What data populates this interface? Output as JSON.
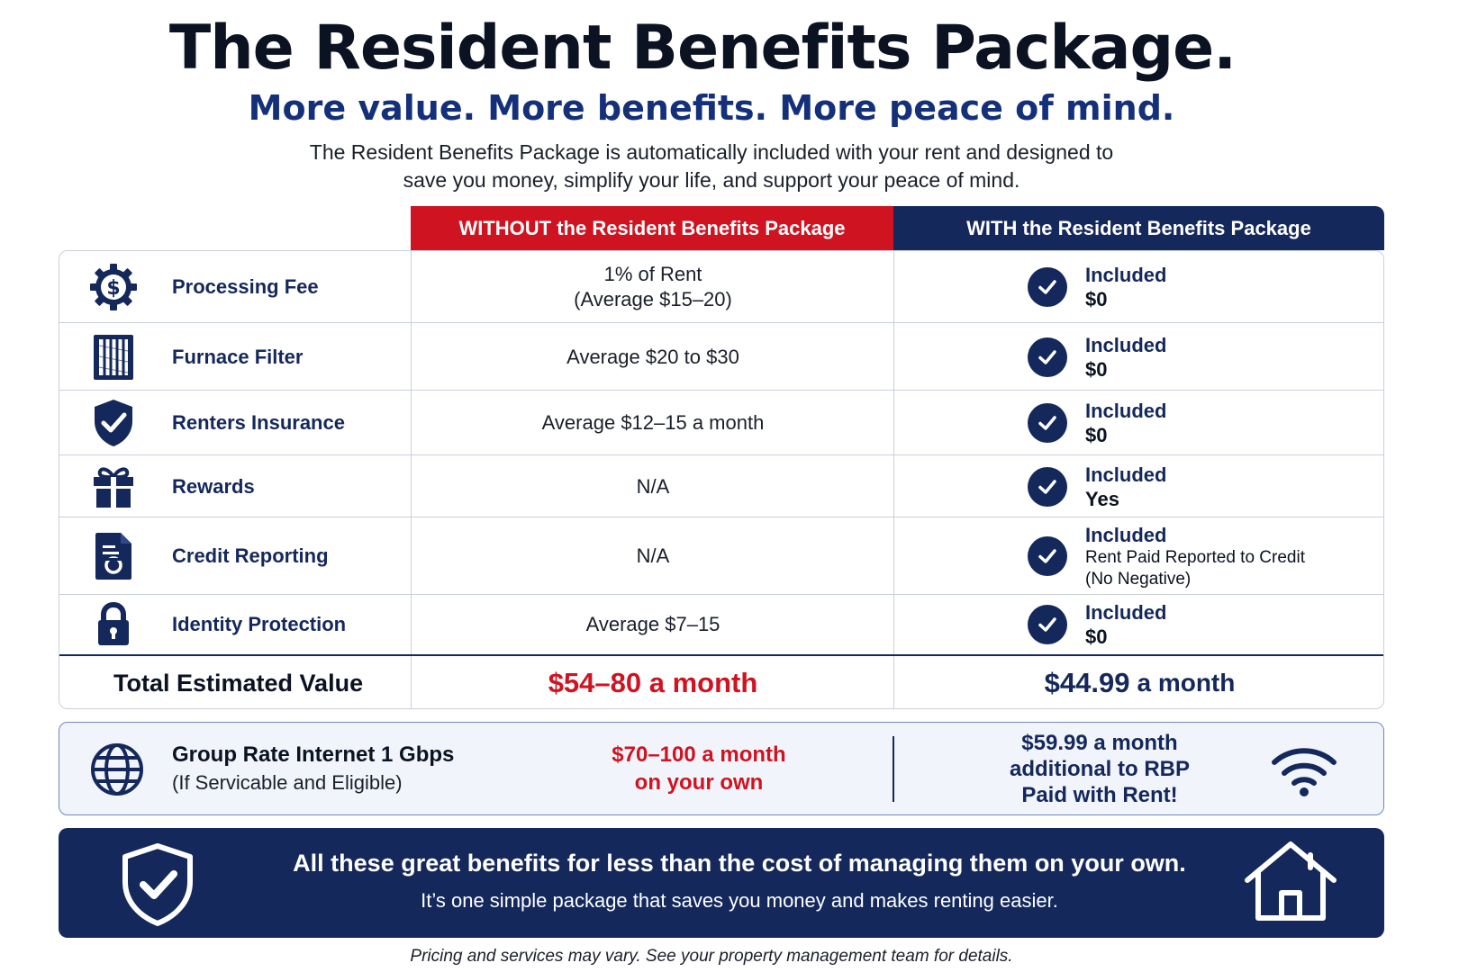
{
  "header": {
    "title": "The Resident Benefits Package.",
    "subtitle": "More value. More benefits. More peace of mind.",
    "intro_line1": "The Resident Benefits Package is automatically included with your rent and designed to",
    "intro_line2": "save you money, simplify your life, and support your peace of mind."
  },
  "columns": {
    "without": "WITHOUT the Resident Benefits Package",
    "with": "WITH the Resident Benefits Package"
  },
  "rows": [
    {
      "icon": "dollar-gear-icon",
      "label": "Processing Fee",
      "without_line1": "1% of Rent",
      "without_line2": "(Average $15–20)",
      "included": "Included",
      "with_value": "$0"
    },
    {
      "icon": "furnace-filter-icon",
      "label": "Furnace Filter",
      "without_line1": "Average $20 to $30",
      "without_line2": "",
      "included": "Included",
      "with_value": "$0"
    },
    {
      "icon": "shield-check-icon",
      "label": "Renters Insurance",
      "without_line1": "Average $12–15 a month",
      "without_line2": "",
      "included": "Included",
      "with_value": "$0"
    },
    {
      "icon": "gift-icon",
      "label": "Rewards",
      "without_line1": "N/A",
      "without_line2": "",
      "included": "Included",
      "with_value": "Yes"
    },
    {
      "icon": "credit-report-icon",
      "label": "Credit Reporting",
      "without_line1": "N/A",
      "without_line2": "",
      "included": "Included",
      "with_value_line1": "Rent Paid Reported to Credit",
      "with_value_line2": "(No Negative)"
    },
    {
      "icon": "lock-icon",
      "label": "Identity Protection",
      "without_line1": "Average $7–15",
      "without_line2": "",
      "included": "Included",
      "with_value": "$0"
    }
  ],
  "total": {
    "label": "Total Estimated Value",
    "without": "$54–80 a month",
    "with_amount": "$44.99",
    "with_unit": "a month"
  },
  "internet": {
    "name": "Group Rate Internet 1 Gbps",
    "note": "(If Servicable and Eligible)",
    "cost_line1": "$70–100 a month",
    "cost_line2": "on your own",
    "rbp_line1": "$59.99 a month",
    "rbp_line2": "additional to RBP",
    "rbp_line3": "Paid with Rent!"
  },
  "banner": {
    "line1": "All these great benefits for less than the cost of managing them on your own.",
    "line2": "It’s one simple package that saves you money and makes renting easier."
  },
  "footer": "Pricing and services may vary. See your property management team for details.",
  "colors": {
    "navy": "#14285b",
    "red": "#cf1320"
  }
}
